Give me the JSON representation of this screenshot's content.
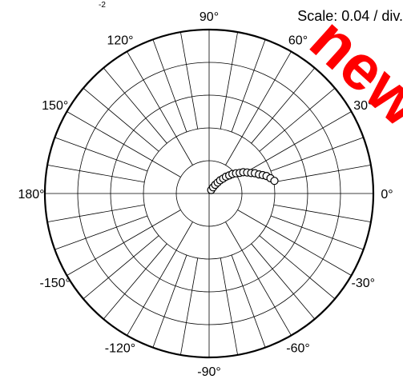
{
  "scale_text": "Scale: 0.04 / div.",
  "corner_mark": "-2",
  "watermark_text": "new",
  "colors": {
    "axis": "#000000",
    "marker_fill": "#ffffff",
    "marker_stroke": "#000000",
    "watermark": "#ff0000"
  },
  "chart_data": {
    "type": "scatter",
    "coordinate_system": "polar",
    "r_per_division": 0.04,
    "radial_divisions": 5,
    "angle_step_deg": 10,
    "grid": true,
    "angle_labels": [
      {
        "deg": 90,
        "text": "90°"
      },
      {
        "deg": 60,
        "text": "60°"
      },
      {
        "deg": 30,
        "text": "30°"
      },
      {
        "deg": 0,
        "text": "0°"
      },
      {
        "deg": -30,
        "text": "-30°"
      },
      {
        "deg": -60,
        "text": "-60°"
      },
      {
        "deg": -90,
        "text": "-90°"
      },
      {
        "deg": -120,
        "text": "-120°"
      },
      {
        "deg": -150,
        "text": "-150°"
      },
      {
        "deg": 180,
        "text": "180°"
      },
      {
        "deg": 150,
        "text": "150°"
      },
      {
        "deg": 120,
        "text": "120°"
      }
    ],
    "points": [
      {
        "r": 0.005,
        "theta": 60
      },
      {
        "r": 0.009,
        "theta": 57
      },
      {
        "r": 0.013,
        "theta": 55
      },
      {
        "r": 0.017,
        "theta": 52
      },
      {
        "r": 0.021,
        "theta": 50
      },
      {
        "r": 0.025,
        "theta": 47
      },
      {
        "r": 0.029,
        "theta": 45
      },
      {
        "r": 0.033,
        "theta": 42
      },
      {
        "r": 0.037,
        "theta": 40
      },
      {
        "r": 0.041,
        "theta": 37
      },
      {
        "r": 0.045,
        "theta": 34
      },
      {
        "r": 0.049,
        "theta": 32
      },
      {
        "r": 0.053,
        "theta": 29
      },
      {
        "r": 0.057,
        "theta": 26
      },
      {
        "r": 0.061,
        "theta": 24
      },
      {
        "r": 0.065,
        "theta": 21
      },
      {
        "r": 0.069,
        "theta": 19
      },
      {
        "r": 0.073,
        "theta": 17
      },
      {
        "r": 0.077,
        "theta": 14
      },
      {
        "r": 0.081,
        "theta": 11
      }
    ]
  }
}
